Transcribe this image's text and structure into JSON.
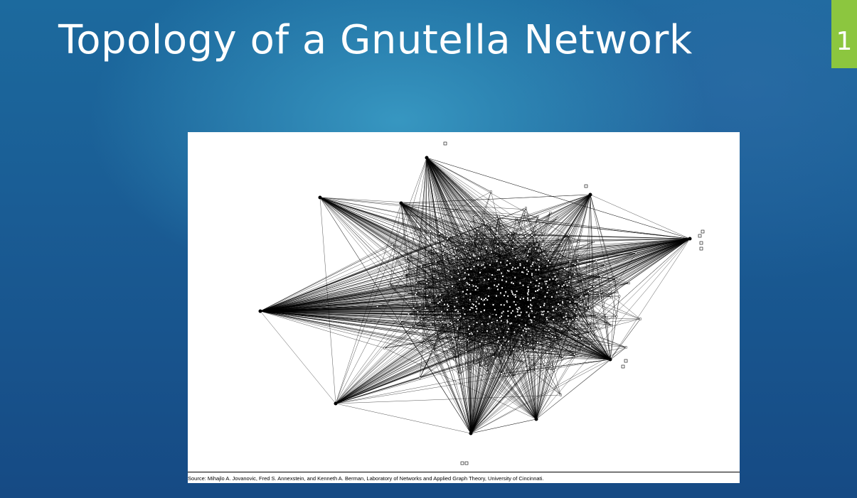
{
  "slide": {
    "title": "Topology of a Gnutella Network",
    "number": "1",
    "accent_color": "#8cc63f"
  },
  "figure": {
    "description_icon": "network-graph-image",
    "caption": "Source: Mihajlo A. Jovanovic, Fred S. Annexstein, and Kenneth A. Berman, Laboratory of Networks and Applied Graph Theory, University of Cincinnati."
  }
}
